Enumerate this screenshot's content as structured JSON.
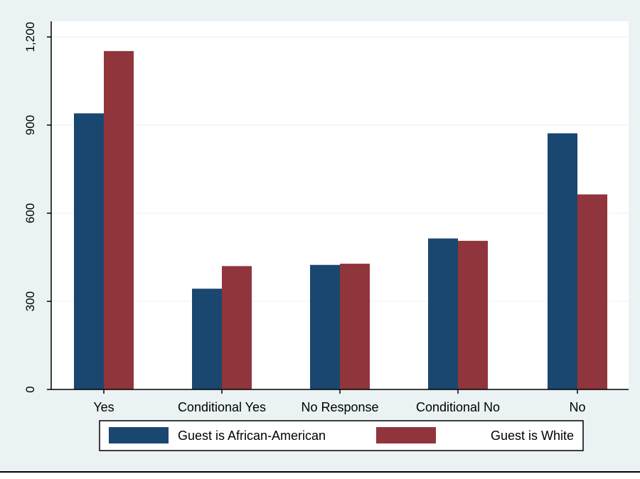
{
  "chart_data": {
    "type": "bar",
    "categories": [
      "Yes",
      "Conditional Yes",
      "No Response",
      "Conditional No",
      "No"
    ],
    "series": [
      {
        "name": "Guest is African-American",
        "values": [
          940,
          343,
          424,
          514,
          872
        ]
      },
      {
        "name": "Guest is White",
        "values": [
          1152,
          420,
          428,
          506,
          664
        ]
      }
    ],
    "yticks": [
      "0",
      "300",
      "600",
      "900",
      "1,200"
    ],
    "ytick_values": [
      0,
      300,
      600,
      900,
      1200
    ],
    "ylim": [
      0,
      1200
    ],
    "title": "",
    "xlabel": "",
    "ylabel": "",
    "grid": true,
    "legend_position": "bottom"
  },
  "colors": {
    "series": [
      "#1a476f",
      "#90353b"
    ],
    "grid": "#eaf2f3",
    "plot_background": "#ffffff",
    "outer_background": "#eaf2f3",
    "axis": "#000000"
  }
}
